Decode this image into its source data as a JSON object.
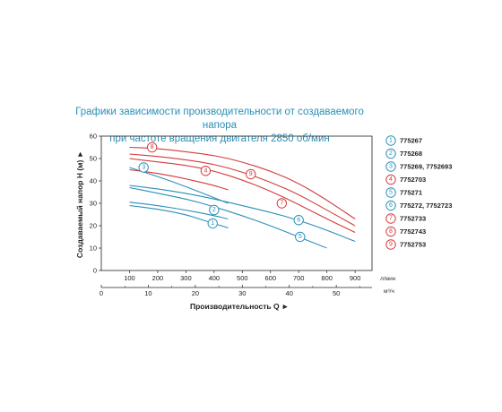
{
  "chart_data": {
    "type": "line",
    "title_line1": "Графики зависимости производительности от создаваемого напора",
    "title_line2": "при частоте вращения двигателя 2850 об/мин",
    "xlabel": "Производительность Q ►",
    "ylabel": "Создаваемый напор H (м) ►",
    "x_unit_primary": "л/мин",
    "x_unit_secondary": "м³/ч",
    "x_ticks_primary": [
      "100",
      "200",
      "300",
      "400",
      "500",
      "600",
      "700",
      "800",
      "900"
    ],
    "x_ticks_secondary": [
      "0",
      "10",
      "20",
      "30",
      "40",
      "50"
    ],
    "y_ticks": [
      "0",
      "10",
      "20",
      "30",
      "40",
      "50",
      "60"
    ],
    "xlim": [
      0,
      960
    ],
    "ylim": [
      0,
      60
    ],
    "grid": false,
    "legend_position": "right",
    "series": [
      {
        "id": "1",
        "name": "775267",
        "color": "#2a8fb8",
        "x": [
          100,
          200,
          300,
          360,
          400,
          450
        ],
        "y": [
          29,
          27.5,
          25,
          22.5,
          21,
          19
        ],
        "label_at": [
          395,
          21
        ]
      },
      {
        "id": "2",
        "name": "775268",
        "color": "#2a8fb8",
        "x": [
          100,
          200,
          300,
          400,
          450
        ],
        "y": [
          30.5,
          29,
          27,
          24.5,
          23
        ],
        "label_at": [
          400,
          27
        ]
      },
      {
        "id": "3",
        "name": "775269, 7752693",
        "color": "#2a8fb8",
        "x": [
          100,
          200,
          300,
          400,
          450
        ],
        "y": [
          46,
          42,
          37.5,
          32.5,
          30
        ],
        "label_at": [
          150,
          46
        ]
      },
      {
        "id": "4",
        "name": "7752703",
        "color": "#d23b3b",
        "x": [
          100,
          200,
          300,
          400,
          450
        ],
        "y": [
          45,
          43.5,
          41,
          38,
          36
        ],
        "label_at": [
          370,
          44.5
        ]
      },
      {
        "id": "5",
        "name": "775271",
        "color": "#2a8fb8",
        "x": [
          100,
          200,
          300,
          400,
          500,
          600,
          700,
          800
        ],
        "y": [
          37,
          34.5,
          32,
          28.5,
          24.5,
          20,
          15,
          10
        ],
        "label_at": [
          705,
          15
        ]
      },
      {
        "id": "6",
        "name": "775272, 7752723",
        "color": "#2a8fb8",
        "x": [
          100,
          200,
          300,
          400,
          500,
          600,
          700,
          800,
          900
        ],
        "y": [
          38,
          36.5,
          34.5,
          32,
          29,
          26,
          22.5,
          18,
          13
        ],
        "label_at": [
          700,
          22.5
        ]
      },
      {
        "id": "7",
        "name": "7752733",
        "color": "#d23b3b",
        "x": [
          100,
          200,
          300,
          400,
          500,
          600,
          700,
          800,
          900
        ],
        "y": [
          50,
          48.5,
          47,
          44.5,
          40.5,
          35.5,
          29.5,
          23,
          17
        ],
        "label_at": [
          640,
          30
        ]
      },
      {
        "id": "8",
        "name": "7752743",
        "color": "#d23b3b",
        "x": [
          100,
          200,
          300,
          400,
          500,
          600,
          700,
          800,
          900
        ],
        "y": [
          55,
          54.5,
          53,
          51.5,
          48.5,
          44.5,
          39,
          31.5,
          23
        ],
        "label_at": [
          180,
          55
        ]
      },
      {
        "id": "9",
        "name": "7752753",
        "color": "#d23b3b",
        "x": [
          100,
          200,
          300,
          400,
          500,
          600,
          700,
          800,
          900
        ],
        "y": [
          52,
          51,
          49.5,
          47.5,
          44,
          39.5,
          34,
          27,
          20
        ],
        "label_at": [
          530,
          43
        ]
      }
    ]
  }
}
